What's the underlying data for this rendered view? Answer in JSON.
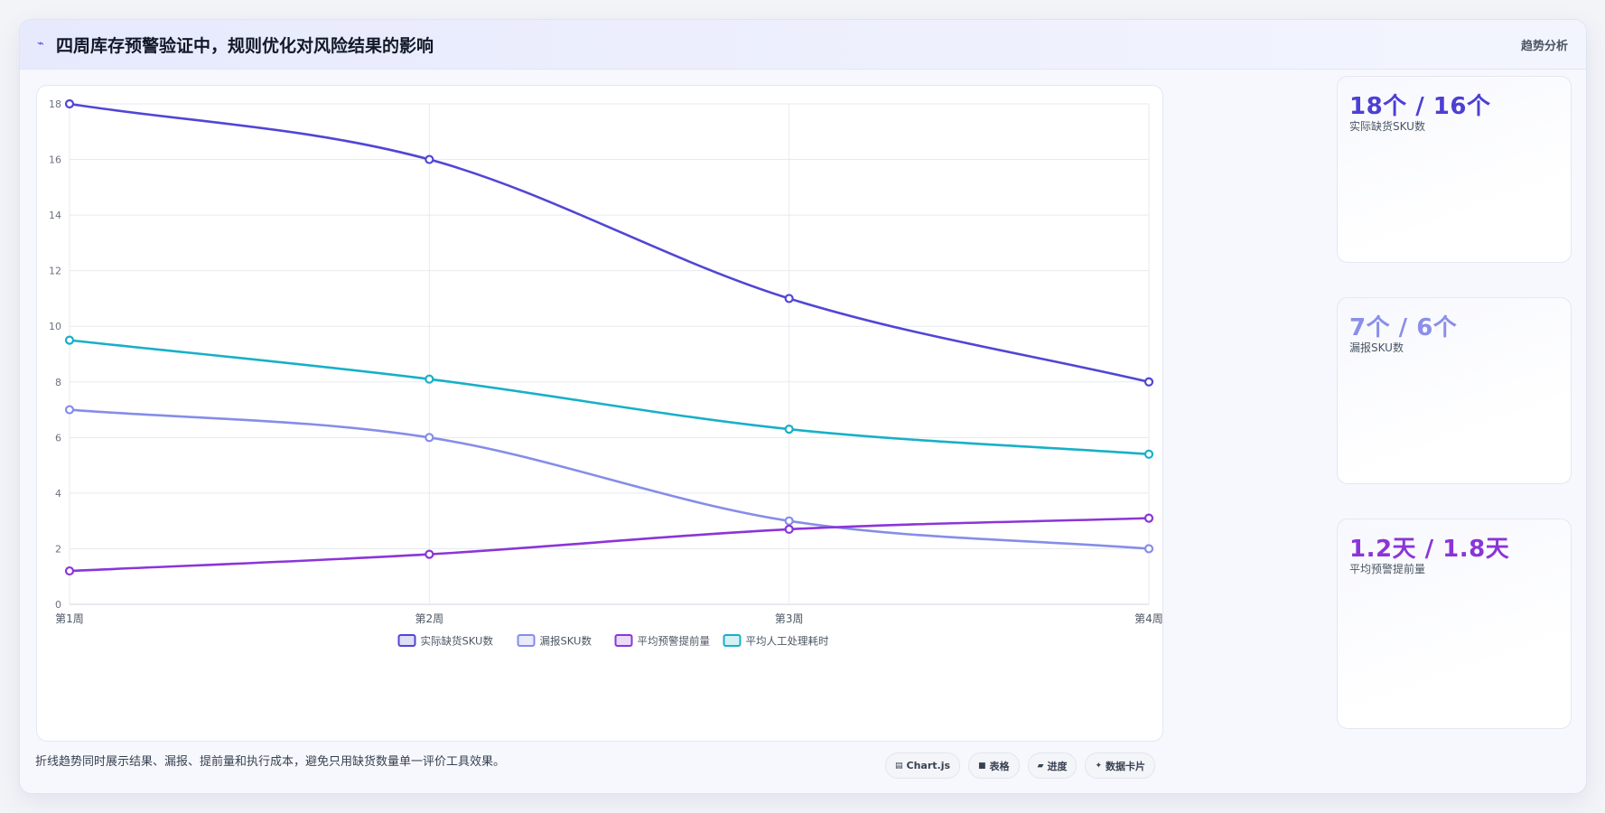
{
  "header": {
    "icon": "pulse-icon",
    "icon_glyph": "⌁",
    "title": "四周库存预警验证中，规则优化对风险结果的影响",
    "action_label": "趋势分析"
  },
  "chart_data": {
    "type": "line",
    "categories": [
      "第1周",
      "第2周",
      "第3周",
      "第4周"
    ],
    "ylim": [
      0,
      18
    ],
    "yticks": [
      0,
      2,
      4,
      6,
      8,
      10,
      12,
      14,
      16,
      18
    ],
    "grid": true,
    "legend_position": "bottom",
    "series": [
      {
        "name": "实际缺货SKU数",
        "color": "#5046d5",
        "values": [
          18,
          16,
          11,
          8
        ]
      },
      {
        "name": "漏报SKU数",
        "color": "#858de8",
        "values": [
          7,
          6,
          3,
          2
        ]
      },
      {
        "name": "平均预警提前量",
        "color": "#8b35d8",
        "values": [
          1.2,
          1.8,
          2.7,
          3.1
        ]
      },
      {
        "name": "平均人工处理耗时",
        "color": "#17b0c7",
        "values": [
          9.5,
          8.1,
          6.3,
          5.4
        ]
      }
    ]
  },
  "stats": [
    {
      "value": "18个 / 16个",
      "label": "实际缺货SKU数",
      "color": "#4c3fd3"
    },
    {
      "value": "7个 / 6个",
      "label": "漏报SKU数",
      "color": "#8a8fea"
    },
    {
      "value": "1.2天 / 1.8天",
      "label": "平均预警提前量",
      "color": "#8a35d8"
    }
  ],
  "footer": {
    "note": "折线趋势同时展示结果、漏报、提前量和执行成本，避免只用缺货数量单一评价工具效果。"
  },
  "toolbar": [
    {
      "icon": "chart-icon",
      "glyph": "▤",
      "label": "Chart.js"
    },
    {
      "icon": "table-icon",
      "glyph": "■",
      "label": "表格"
    },
    {
      "icon": "progress-icon",
      "glyph": "▰",
      "label": "进度"
    },
    {
      "icon": "card-icon",
      "glyph": "✦",
      "label": "数据卡片"
    }
  ]
}
